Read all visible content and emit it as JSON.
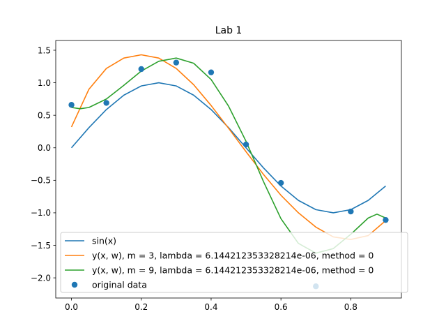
{
  "chart_data": {
    "type": "line",
    "title": "Lab 1",
    "xlabel": "",
    "ylabel": "",
    "xlim": [
      -0.045,
      0.945
    ],
    "ylim": [
      -2.31,
      1.65
    ],
    "xticks": [
      0.0,
      0.2,
      0.4,
      0.6,
      0.8
    ],
    "xtick_labels": [
      "0.0",
      "0.2",
      "0.4",
      "0.6",
      "0.8"
    ],
    "yticks": [
      -2.0,
      -1.5,
      -1.0,
      -0.5,
      0.0,
      0.5,
      1.0,
      1.5
    ],
    "ytick_labels": [
      "−2.0",
      "−1.5",
      "−1.0",
      "−0.5",
      "0.0",
      "0.5",
      "1.0",
      "1.5"
    ],
    "grid": false,
    "legend_position": "bottom-right",
    "series": [
      {
        "name": "sin(x)",
        "kind": "line",
        "color": "#1f77b4",
        "x": [
          0.0,
          0.05,
          0.1,
          0.15,
          0.2,
          0.25,
          0.3,
          0.35,
          0.4,
          0.45,
          0.5,
          0.55,
          0.6,
          0.65,
          0.7,
          0.75,
          0.8,
          0.85,
          0.9
        ],
        "y": [
          0.0,
          0.309,
          0.588,
          0.809,
          0.951,
          1.0,
          0.951,
          0.809,
          0.588,
          0.309,
          0.0,
          -0.309,
          -0.588,
          -0.809,
          -0.951,
          -1.0,
          -0.951,
          -0.809,
          -0.588
        ]
      },
      {
        "name": "y(x, w), m = 3, lambda = 6.144212353328214e-06, method = 0",
        "kind": "line",
        "color": "#ff7f0e",
        "x": [
          0.0,
          0.05,
          0.1,
          0.15,
          0.2,
          0.25,
          0.3,
          0.35,
          0.4,
          0.45,
          0.5,
          0.55,
          0.6,
          0.65,
          0.7,
          0.75,
          0.8,
          0.85,
          0.9
        ],
        "y": [
          0.32,
          0.9,
          1.22,
          1.38,
          1.43,
          1.38,
          1.22,
          0.97,
          0.65,
          0.3,
          -0.06,
          -0.41,
          -0.73,
          -1.0,
          -1.22,
          -1.37,
          -1.41,
          -1.35,
          -1.12
        ]
      },
      {
        "name": "y(x, w), m = 9, lambda = 6.144212353328214e-06, method = 0",
        "kind": "line",
        "color": "#2ca02c",
        "x": [
          0.0,
          0.025,
          0.05,
          0.1,
          0.15,
          0.2,
          0.25,
          0.3,
          0.35,
          0.4,
          0.45,
          0.5,
          0.55,
          0.6,
          0.65,
          0.7,
          0.75,
          0.8,
          0.85,
          0.875,
          0.9
        ],
        "y": [
          0.62,
          0.6,
          0.62,
          0.75,
          0.96,
          1.18,
          1.33,
          1.38,
          1.3,
          1.05,
          0.64,
          0.1,
          -0.52,
          -1.09,
          -1.47,
          -1.62,
          -1.55,
          -1.33,
          -1.08,
          -1.02,
          -1.08
        ]
      },
      {
        "name": "original data",
        "kind": "scatter",
        "color": "#1f77b4",
        "x": [
          0.0,
          0.1,
          0.2,
          0.3,
          0.4,
          0.5,
          0.6,
          0.7,
          0.8,
          0.9
        ],
        "y": [
          0.66,
          0.69,
          1.21,
          1.31,
          1.16,
          0.05,
          -0.54,
          -2.13,
          -0.98,
          -1.11
        ]
      }
    ]
  }
}
